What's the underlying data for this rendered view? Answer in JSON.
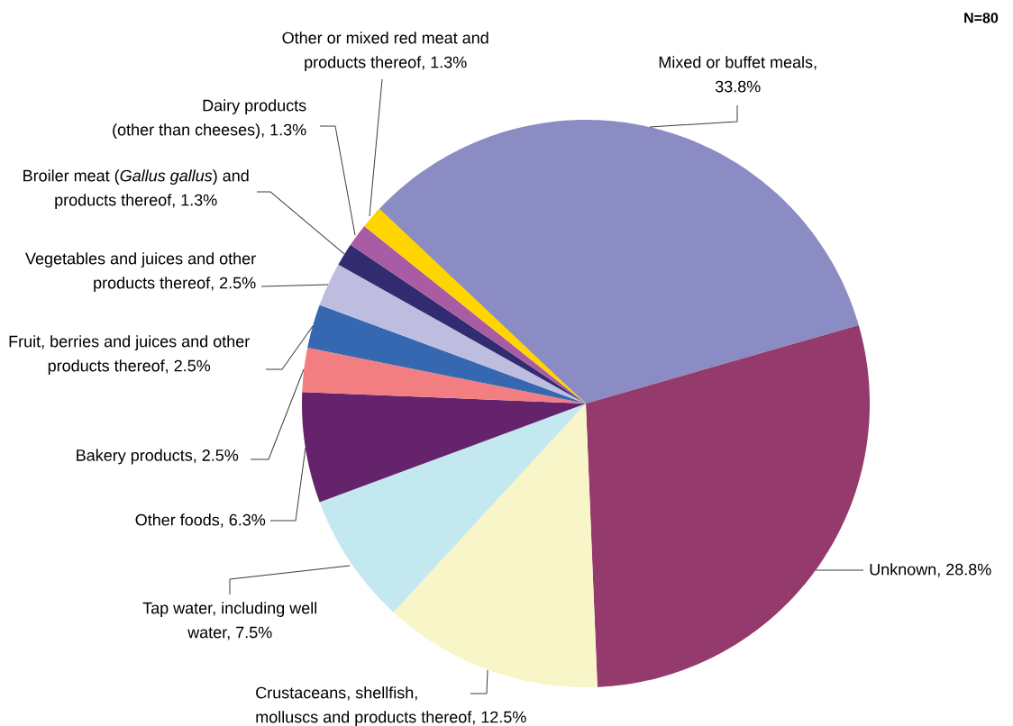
{
  "chart_data": {
    "type": "pie",
    "categories": [
      "Mixed or buffet meals, 33.8%",
      "Unknown, 28.8%",
      "Crustaceans, shellfish, molluscs and products thereof, 12.5%",
      "Tap water, including well water, 7.5%",
      "Other foods, 6.3%",
      "Bakery products, 2.5%",
      "Fruit, berries and juices and other products thereof, 2.5%",
      "Vegetables and juices and other products thereof, 2.5%",
      "Broiler meat (*Gallus gallus*) and products thereof, 1.3%",
      "Dairy products (other than cheeses), 1.3%",
      "Other or mixed red meat and products thereof, 1.3%"
    ],
    "values": [
      33.8,
      28.8,
      12.5,
      7.5,
      6.3,
      2.5,
      2.5,
      2.5,
      1.3,
      1.3,
      1.3
    ],
    "colors": [
      "#8c8cc4",
      "#943a6c",
      "#f8f6c8",
      "#c4e8ef",
      "#65236b",
      "#f27e82",
      "#3568b0",
      "#bfbddf",
      "#302c6f",
      "#a95ba3",
      "#ffd500"
    ],
    "annotations": [
      "N=80"
    ]
  }
}
